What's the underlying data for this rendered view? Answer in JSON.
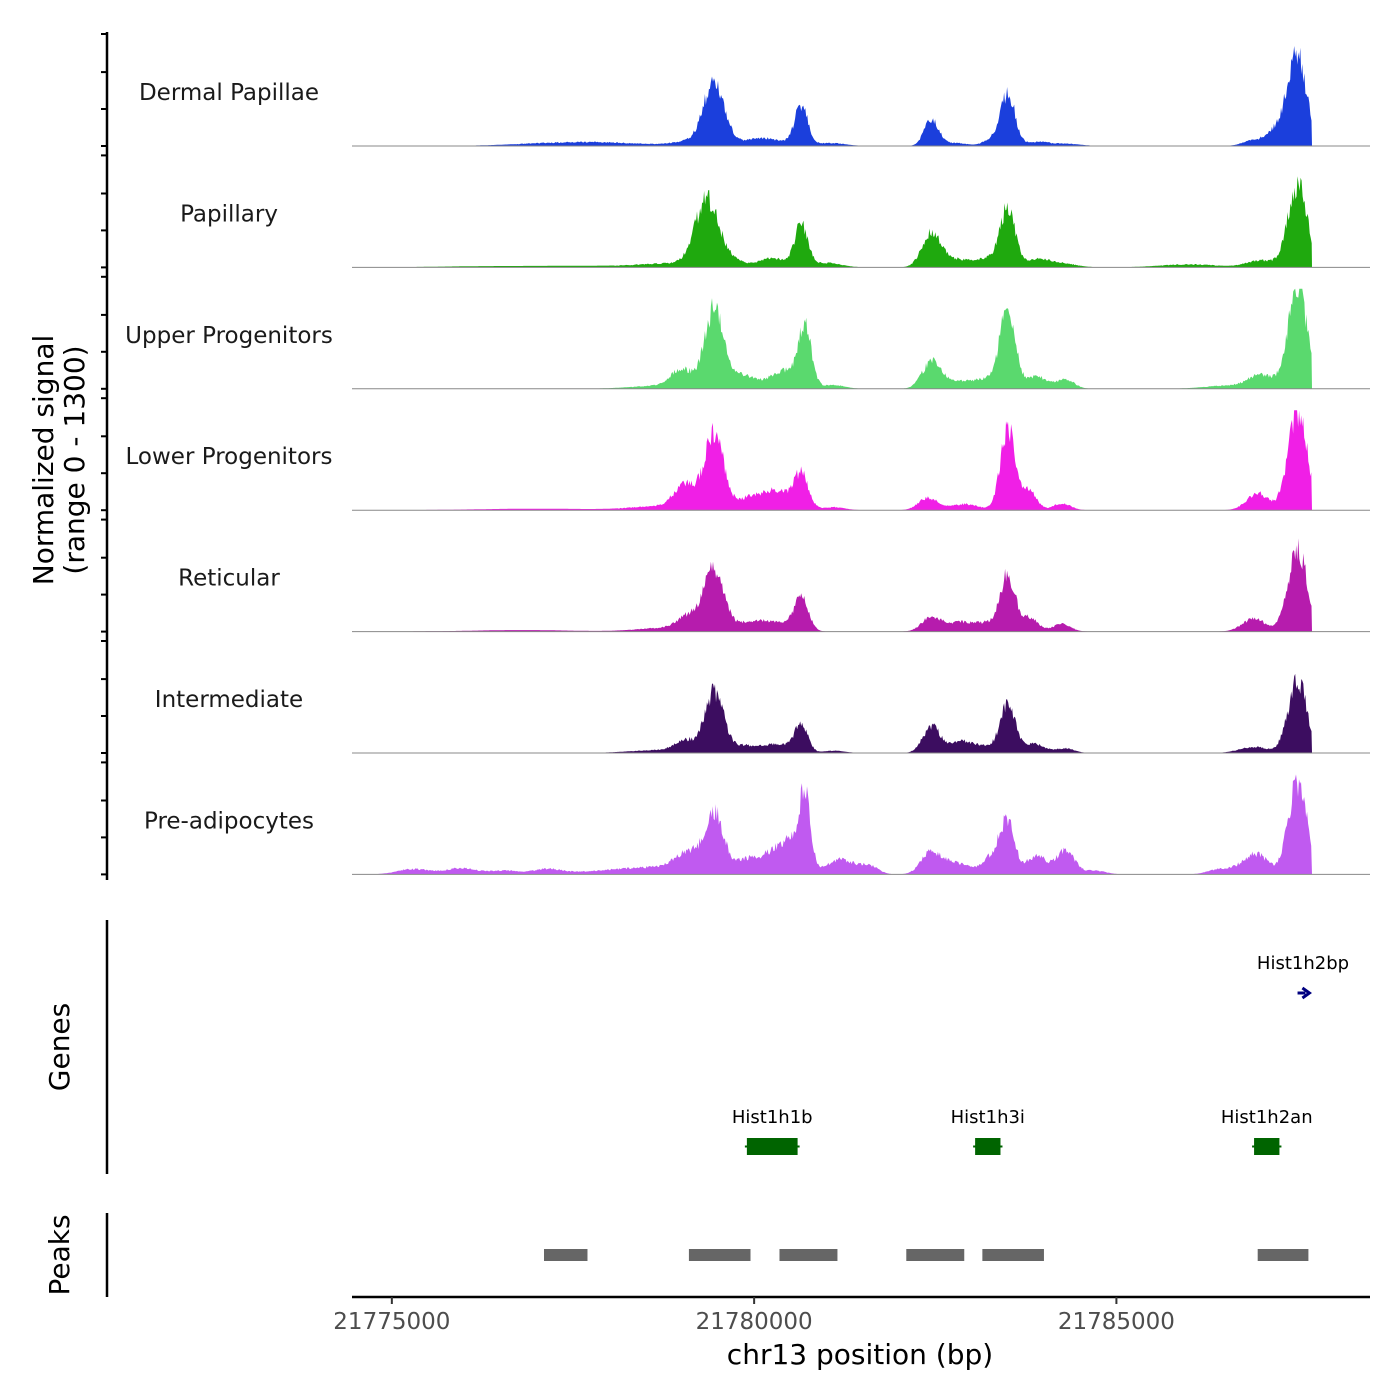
{
  "chart_data": {
    "type": "area",
    "title": "",
    "ylabel_line1": "Normalized signal",
    "ylabel_line2": "(range 0 - 1300)",
    "xlabel": "chr13 position (bp)",
    "chromosome": "chr13",
    "y_range": [
      0,
      1300
    ],
    "xlim": [
      21774450,
      21788500
    ],
    "x_ticks": [
      21775000,
      21780000,
      21785000
    ],
    "x_tick_labels": [
      "21775000",
      "21780000",
      "21785000"
    ],
    "tracks": [
      {
        "name": "Dermal Papillae",
        "color": "#1b3fdc",
        "peaks": [
          [
            21777200,
            30,
            600
          ],
          [
            21778000,
            35,
            600
          ],
          [
            21779200,
            70,
            260
          ],
          [
            21779450,
            820,
            140
          ],
          [
            21779900,
            60,
            160
          ],
          [
            21780150,
            80,
            130
          ],
          [
            21780400,
            50,
            120
          ],
          [
            21780650,
            530,
            90
          ],
          [
            21781050,
            40,
            200
          ],
          [
            21782450,
            350,
            100
          ],
          [
            21782800,
            40,
            150
          ],
          [
            21783250,
            80,
            100
          ],
          [
            21783500,
            700,
            100
          ],
          [
            21783900,
            50,
            160
          ],
          [
            21784300,
            30,
            200
          ],
          [
            21786900,
            70,
            150
          ],
          [
            21787250,
            220,
            150
          ],
          [
            21787500,
            1150,
            130
          ]
        ]
      },
      {
        "name": "Papillary",
        "color": "#1fa90e",
        "peaks": [
          [
            21776300,
            15,
            700
          ],
          [
            21777800,
            20,
            700
          ],
          [
            21778900,
            50,
            400
          ],
          [
            21779350,
            880,
            160
          ],
          [
            21779700,
            80,
            150
          ],
          [
            21780250,
            120,
            200
          ],
          [
            21780650,
            550,
            90
          ],
          [
            21781000,
            60,
            200
          ],
          [
            21782450,
            450,
            130
          ],
          [
            21782800,
            100,
            180
          ],
          [
            21783300,
            130,
            200
          ],
          [
            21783500,
            700,
            100
          ],
          [
            21783900,
            100,
            180
          ],
          [
            21784250,
            50,
            200
          ],
          [
            21786000,
            40,
            400
          ],
          [
            21787000,
            90,
            200
          ],
          [
            21787500,
            1100,
            130
          ]
        ]
      },
      {
        "name": "Upper Progenitors",
        "color": "#5ad96e",
        "peaks": [
          [
            21778700,
            40,
            400
          ],
          [
            21779000,
            240,
            150
          ],
          [
            21779450,
            1050,
            130
          ],
          [
            21779850,
            180,
            150
          ],
          [
            21780400,
            240,
            200
          ],
          [
            21780700,
            800,
            90
          ],
          [
            21781100,
            50,
            150
          ],
          [
            21782450,
            350,
            130
          ],
          [
            21782800,
            80,
            180
          ],
          [
            21783250,
            130,
            220
          ],
          [
            21783500,
            1050,
            100
          ],
          [
            21783900,
            160,
            150
          ],
          [
            21784300,
            120,
            120
          ],
          [
            21786500,
            40,
            300
          ],
          [
            21787000,
            180,
            180
          ],
          [
            21787500,
            1350,
            130
          ]
        ]
      },
      {
        "name": "Lower Progenitors",
        "color": "#f01fe6",
        "peaks": [
          [
            21777000,
            20,
            800
          ],
          [
            21778700,
            50,
            400
          ],
          [
            21779050,
            320,
            150
          ],
          [
            21779450,
            1020,
            130
          ],
          [
            21779900,
            140,
            160
          ],
          [
            21780300,
            260,
            200
          ],
          [
            21780650,
            450,
            100
          ],
          [
            21781100,
            40,
            150
          ],
          [
            21782400,
            160,
            130
          ],
          [
            21782900,
            80,
            200
          ],
          [
            21783500,
            1080,
            100
          ],
          [
            21783800,
            260,
            100
          ],
          [
            21784250,
            90,
            120
          ],
          [
            21786950,
            230,
            150
          ],
          [
            21787500,
            1320,
            130
          ]
        ]
      },
      {
        "name": "Reticular",
        "color": "#b61cad",
        "peaks": [
          [
            21776800,
            20,
            700
          ],
          [
            21778800,
            50,
            400
          ],
          [
            21779100,
            180,
            150
          ],
          [
            21779450,
            800,
            140
          ],
          [
            21779900,
            100,
            160
          ],
          [
            21780250,
            130,
            200
          ],
          [
            21780650,
            450,
            100
          ],
          [
            21782450,
            200,
            130
          ],
          [
            21782800,
            100,
            150
          ],
          [
            21783200,
            120,
            220
          ],
          [
            21783500,
            700,
            100
          ],
          [
            21783800,
            180,
            120
          ],
          [
            21784250,
            100,
            120
          ],
          [
            21786900,
            170,
            160
          ],
          [
            21787500,
            1100,
            130
          ]
        ]
      },
      {
        "name": "Intermediate",
        "color": "#3c0d60",
        "peaks": [
          [
            21778700,
            40,
            400
          ],
          [
            21779050,
            150,
            140
          ],
          [
            21779450,
            800,
            130
          ],
          [
            21779850,
            90,
            150
          ],
          [
            21780300,
            120,
            200
          ],
          [
            21780650,
            380,
            90
          ],
          [
            21781100,
            30,
            150
          ],
          [
            21782450,
            350,
            120
          ],
          [
            21782850,
            130,
            150
          ],
          [
            21783200,
            90,
            220
          ],
          [
            21783500,
            600,
            100
          ],
          [
            21783850,
            120,
            160
          ],
          [
            21784300,
            60,
            120
          ],
          [
            21786900,
            80,
            200
          ],
          [
            21787500,
            960,
            130
          ]
        ]
      },
      {
        "name": "Pre-adipocytes",
        "color": "#c05af0",
        "peaks": [
          [
            21775300,
            70,
            220
          ],
          [
            21775950,
            80,
            220
          ],
          [
            21776550,
            50,
            200
          ],
          [
            21777150,
            70,
            200
          ],
          [
            21777800,
            40,
            300
          ],
          [
            21778300,
            60,
            250
          ],
          [
            21778800,
            100,
            250
          ],
          [
            21779100,
            250,
            160
          ],
          [
            21779450,
            800,
            130
          ],
          [
            21779900,
            200,
            170
          ],
          [
            21780250,
            250,
            150
          ],
          [
            21780500,
            380,
            130
          ],
          [
            21780700,
            1000,
            80
          ],
          [
            21781200,
            200,
            200
          ],
          [
            21781600,
            100,
            120
          ],
          [
            21782450,
            300,
            140
          ],
          [
            21782800,
            150,
            150
          ],
          [
            21783300,
            250,
            150
          ],
          [
            21783500,
            600,
            100
          ],
          [
            21783900,
            250,
            140
          ],
          [
            21784300,
            320,
            120
          ],
          [
            21784700,
            50,
            150
          ],
          [
            21786400,
            60,
            150
          ],
          [
            21786700,
            80,
            150
          ],
          [
            21786950,
            250,
            150
          ],
          [
            21787500,
            1200,
            130
          ]
        ]
      }
    ],
    "genes": [
      {
        "name": "Hist1h2bp",
        "start": 21787500,
        "end": 21787650,
        "strand": "+",
        "type": "arrow",
        "color": "#000080"
      },
      {
        "name": "Hist1h1b",
        "start": 21779900,
        "end": 21780600,
        "type": "box",
        "color": "#006400"
      },
      {
        "name": "Hist1h3i",
        "start": 21783050,
        "end": 21783400,
        "type": "box",
        "color": "#006400"
      },
      {
        "name": "Hist1h2an",
        "start": 21786900,
        "end": 21787250,
        "type": "box",
        "color": "#006400"
      }
    ],
    "gene_track_label": "Genes",
    "peak_track_label": "Peaks",
    "peak_color": "#666666",
    "peaks": [
      [
        21777100,
        21777700
      ],
      [
        21779100,
        21779950
      ],
      [
        21780350,
        21781150
      ],
      [
        21782100,
        21782900
      ],
      [
        21783150,
        21784000
      ],
      [
        21786950,
        21787650
      ]
    ]
  }
}
